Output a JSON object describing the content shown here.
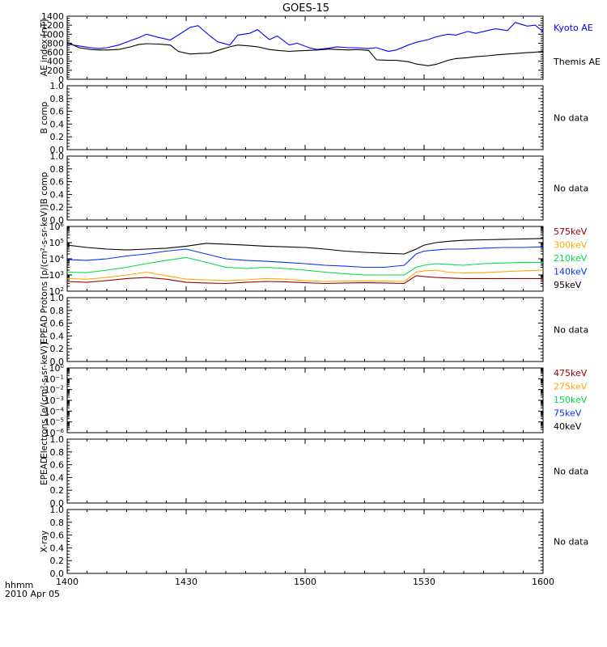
{
  "title": "GOES-15",
  "footer": {
    "axis_label": "hhmm",
    "date": "2010 Apr 05",
    "ticks": [
      "1400",
      "1430",
      "1500",
      "1530",
      "1600"
    ]
  },
  "no_data_text": "No data",
  "chart_data": [
    {
      "type": "line",
      "ylabel": "AE index [nT]",
      "ylim": [
        0,
        1400
      ],
      "yticks": [
        "0",
        "200",
        "400",
        "600",
        "800",
        "1000",
        "1200",
        "1400"
      ],
      "yscale": "linear",
      "x_unit": "hhmm",
      "xlim": [
        "1400",
        "1600"
      ],
      "series": [
        {
          "name": "Kyoto AE",
          "color": "#0000ff",
          "x": [
            "1400",
            "1403",
            "1406",
            "1408",
            "1410",
            "1413",
            "1416",
            "1418",
            "1420",
            "1423",
            "1426",
            "1428",
            "1431",
            "1433",
            "1436",
            "1438",
            "1441",
            "1443",
            "1446",
            "1448",
            "1451",
            "1453",
            "1456",
            "1458",
            "1501",
            "1503",
            "1506",
            "1508",
            "1511",
            "1513",
            "1516",
            "1518",
            "1521",
            "1523",
            "1526",
            "1528",
            "1531",
            "1533",
            "1536",
            "1538",
            "1541",
            "1543",
            "1546",
            "1548",
            "1551",
            "1553",
            "1556",
            "1558",
            "1600"
          ],
          "values": [
            780,
            740,
            700,
            680,
            700,
            760,
            860,
            920,
            1000,
            930,
            870,
            980,
            1150,
            1190,
            960,
            830,
            760,
            980,
            1020,
            1100,
            880,
            960,
            760,
            800,
            700,
            660,
            690,
            720,
            700,
            700,
            680,
            700,
            620,
            650,
            760,
            820,
            880,
            940,
            1000,
            980,
            1060,
            1020,
            1080,
            1120,
            1080,
            1260,
            1180,
            1200,
            1060
          ]
        },
        {
          "name": "Themis AE",
          "color": "#000000",
          "x": [
            "1400",
            "1403",
            "1406",
            "1408",
            "1410",
            "1413",
            "1416",
            "1418",
            "1420",
            "1423",
            "1426",
            "1428",
            "1431",
            "1433",
            "1436",
            "1438",
            "1441",
            "1443",
            "1446",
            "1448",
            "1451",
            "1453",
            "1456",
            "1458",
            "1501",
            "1503",
            "1506",
            "1508",
            "1511",
            "1513",
            "1516",
            "1518",
            "1521",
            "1523",
            "1526",
            "1528",
            "1531",
            "1533",
            "1536",
            "1538",
            "1541",
            "1543",
            "1546",
            "1548",
            "1551",
            "1553",
            "1556",
            "1558",
            "1600"
          ],
          "values": [
            820,
            700,
            660,
            650,
            650,
            660,
            720,
            770,
            790,
            780,
            760,
            620,
            560,
            570,
            580,
            640,
            720,
            760,
            740,
            720,
            660,
            640,
            620,
            630,
            640,
            650,
            670,
            660,
            650,
            660,
            640,
            430,
            420,
            420,
            390,
            340,
            300,
            330,
            420,
            460,
            480,
            500,
            520,
            540,
            560,
            570,
            590,
            600,
            620
          ]
        }
      ]
    },
    {
      "type": "line",
      "ylabel": "B comp",
      "ylim": [
        0.0,
        1.0
      ],
      "yticks": [
        "0.0",
        "0.2",
        "0.4",
        "0.6",
        "0.8",
        "1.0"
      ],
      "series": []
    },
    {
      "type": "line",
      "ylabel": "B comp",
      "ylim": [
        0.0,
        1.0
      ],
      "yticks": [
        "0.0",
        "0.2",
        "0.4",
        "0.6",
        "0.8",
        "1.0"
      ],
      "series": []
    },
    {
      "type": "line",
      "ylabel": "Protons [p/(cm²-s-sr-keV)]",
      "yscale": "log",
      "ylim_exp": [
        2,
        6
      ],
      "series": [
        {
          "name": "575keV",
          "color": "#990000",
          "x": [
            "1400",
            "1405",
            "1410",
            "1415",
            "1420",
            "1425",
            "1430",
            "1435",
            "1440",
            "1445",
            "1450",
            "1455",
            "1500",
            "1505",
            "1510",
            "1515",
            "1520",
            "1525",
            "1528",
            "1530",
            "1533",
            "1536",
            "1540",
            "1545",
            "1550",
            "1555",
            "1600"
          ],
          "values": [
            400,
            350,
            450,
            600,
            700,
            550,
            350,
            320,
            300,
            350,
            400,
            380,
            330,
            300,
            320,
            330,
            320,
            300,
            900,
            800,
            700,
            650,
            600,
            600,
            600,
            600,
            600
          ]
        },
        {
          "name": "300keV",
          "color": "#ffaa00",
          "x": [
            "1400",
            "1405",
            "1410",
            "1415",
            "1420",
            "1425",
            "1430",
            "1435",
            "1440",
            "1445",
            "1450",
            "1455",
            "1500",
            "1505",
            "1510",
            "1515",
            "1520",
            "1525",
            "1528",
            "1530",
            "1533",
            "1536",
            "1540",
            "1545",
            "1550",
            "1555",
            "1600"
          ],
          "values": [
            600,
            550,
            700,
            1000,
            1500,
            900,
            550,
            500,
            450,
            500,
            600,
            550,
            450,
            400,
            420,
            430,
            420,
            400,
            1500,
            1800,
            2000,
            1500,
            1300,
            1400,
            1600,
            1800,
            2000
          ]
        },
        {
          "name": "210keV",
          "color": "#00dd44",
          "x": [
            "1400",
            "1405",
            "1410",
            "1415",
            "1420",
            "1425",
            "1430",
            "1435",
            "1440",
            "1445",
            "1450",
            "1455",
            "1500",
            "1505",
            "1510",
            "1515",
            "1520",
            "1525",
            "1528",
            "1530",
            "1533",
            "1536",
            "1540",
            "1545",
            "1550",
            "1555",
            "1600"
          ],
          "values": [
            1500,
            1400,
            2000,
            3000,
            5000,
            8000,
            12000,
            6000,
            3000,
            2500,
            3000,
            2500,
            2000,
            1500,
            1200,
            1000,
            1000,
            1000,
            3000,
            4000,
            5000,
            4500,
            4000,
            5000,
            5500,
            6000,
            6000
          ]
        },
        {
          "name": "140keV",
          "color": "#0033ff",
          "x": [
            "1400",
            "1405",
            "1410",
            "1415",
            "1420",
            "1425",
            "1430",
            "1435",
            "1440",
            "1445",
            "1450",
            "1455",
            "1500",
            "1505",
            "1510",
            "1515",
            "1520",
            "1525",
            "1528",
            "1530",
            "1533",
            "1536",
            "1540",
            "1545",
            "1550",
            "1555",
            "1600"
          ],
          "values": [
            9000,
            8000,
            10000,
            15000,
            20000,
            30000,
            40000,
            20000,
            10000,
            8000,
            7000,
            6000,
            5000,
            4000,
            3500,
            3000,
            3000,
            4000,
            20000,
            30000,
            35000,
            40000,
            40000,
            45000,
            50000,
            50000,
            55000
          ]
        },
        {
          "name": "95keV",
          "color": "#000000",
          "x": [
            "1400",
            "1405",
            "1410",
            "1415",
            "1420",
            "1425",
            "1430",
            "1435",
            "1440",
            "1445",
            "1450",
            "1455",
            "1500",
            "1505",
            "1510",
            "1515",
            "1520",
            "1525",
            "1528",
            "1530",
            "1533",
            "1536",
            "1540",
            "1545",
            "1550",
            "1555",
            "1600"
          ],
          "values": [
            70000,
            50000,
            40000,
            35000,
            40000,
            45000,
            60000,
            90000,
            80000,
            70000,
            60000,
            55000,
            50000,
            40000,
            30000,
            25000,
            22000,
            20000,
            40000,
            70000,
            100000,
            120000,
            140000,
            150000,
            160000,
            170000,
            180000
          ]
        }
      ]
    },
    {
      "type": "line",
      "ylabel": "EPEAD",
      "ylim": [
        0.0,
        1.0
      ],
      "yticks": [
        "0.0",
        "0.2",
        "0.4",
        "0.6",
        "0.8",
        "1.0"
      ],
      "series": []
    },
    {
      "type": "line",
      "ylabel": "Electrons [e/(cm²-s-sr-keV)]",
      "yscale": "log",
      "ylim_exp": [
        -6,
        0
      ],
      "legend": [
        {
          "name": "475keV",
          "color": "#990000"
        },
        {
          "name": "275keV",
          "color": "#ffaa00"
        },
        {
          "name": "150keV",
          "color": "#00dd44"
        },
        {
          "name": "75keV",
          "color": "#0033ff"
        },
        {
          "name": "40keV",
          "color": "#000000"
        }
      ],
      "series": []
    },
    {
      "type": "line",
      "ylabel": "EPEAD",
      "ylim": [
        0.0,
        1.0
      ],
      "yticks": [
        "0.0",
        "0.2",
        "0.4",
        "0.6",
        "0.8",
        "1.0"
      ],
      "series": []
    },
    {
      "type": "line",
      "ylabel": "X-ray",
      "ylim": [
        0.0,
        1.0
      ],
      "yticks": [
        "0.0",
        "0.2",
        "0.4",
        "0.6",
        "0.8",
        "1.0"
      ],
      "series": []
    }
  ]
}
